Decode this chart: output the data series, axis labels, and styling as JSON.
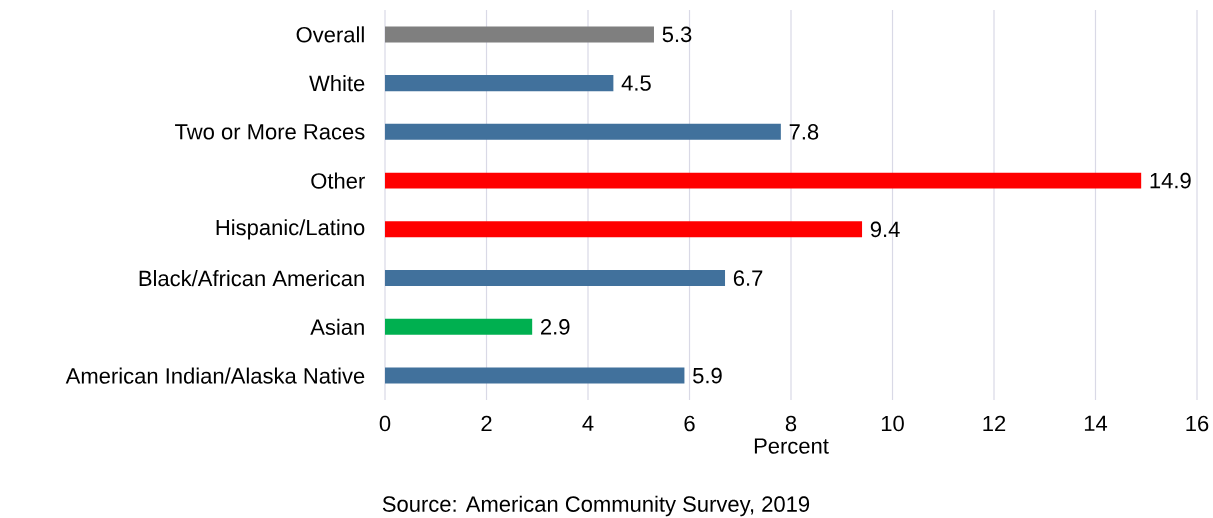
{
  "chart_data": {
    "type": "bar",
    "orientation": "horizontal",
    "xlabel": "Percent",
    "annotations": [
      "Source: American Community Survey, 2019"
    ],
    "categories": [
      "Overall",
      "White",
      "Two or More Races",
      "Other",
      "Hispanic/Latino",
      "Black/African American",
      "Asian",
      "American Indian/Alaska Native"
    ],
    "values": [
      5.3,
      4.5,
      7.8,
      14.9,
      9.4,
      6.7,
      2.9,
      5.9
    ],
    "colors": [
      "#7f7f7f",
      "#41719c",
      "#41719c",
      "#ff0000",
      "#ff0000",
      "#41719c",
      "#00b050",
      "#41719c"
    ],
    "xlim": [
      0,
      16
    ],
    "xticks": [
      0,
      2,
      4,
      6,
      8,
      10,
      12,
      14,
      16
    ],
    "grid": "x",
    "data_labels": true
  }
}
